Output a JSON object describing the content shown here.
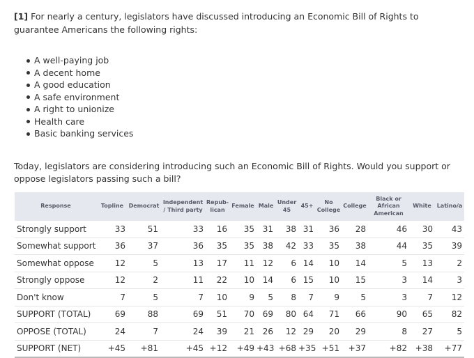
{
  "question1": {
    "number": "[1]",
    "text": "For nearly a century, legislators have discussed introducing an Economic Bill of Rights to guarantee Americans the following rights:"
  },
  "rights": [
    "A well-paying job",
    "A decent home",
    "A good education",
    "A safe environment",
    "A right to unionize",
    "Health care",
    "Basic banking services"
  ],
  "question2": {
    "text": "Today, legislators are considering introducing such an Economic Bill of Rights. Would you support or oppose legislators passing such a bill?"
  },
  "table": {
    "headers": [
      "Response",
      "Topline",
      "Democrat",
      "Independent / Third party",
      "Repub-lican",
      "Female",
      "Male",
      "Under 45",
      "45+",
      "No College",
      "College",
      "Black or African American",
      "White",
      "Latino/a"
    ],
    "rows": [
      [
        "Strongly support",
        "33",
        "51",
        "33",
        "16",
        "35",
        "31",
        "38",
        "31",
        "36",
        "28",
        "46",
        "30",
        "43"
      ],
      [
        "Somewhat support",
        "36",
        "37",
        "36",
        "35",
        "35",
        "38",
        "42",
        "33",
        "35",
        "38",
        "44",
        "35",
        "39"
      ],
      [
        "Somewhat oppose",
        "12",
        "5",
        "13",
        "17",
        "11",
        "12",
        "6",
        "14",
        "10",
        "14",
        "5",
        "13",
        "2"
      ],
      [
        "Strongly oppose",
        "12",
        "2",
        "11",
        "22",
        "10",
        "14",
        "6",
        "15",
        "10",
        "15",
        "3",
        "14",
        "3"
      ],
      [
        "Don't know",
        "7",
        "5",
        "7",
        "10",
        "9",
        "5",
        "8",
        "7",
        "9",
        "5",
        "3",
        "7",
        "12"
      ],
      [
        "SUPPORT (TOTAL)",
        "69",
        "88",
        "69",
        "51",
        "70",
        "69",
        "80",
        "64",
        "71",
        "66",
        "90",
        "65",
        "82"
      ],
      [
        "OPPOSE (TOTAL)",
        "24",
        "7",
        "24",
        "39",
        "21",
        "26",
        "12",
        "29",
        "20",
        "29",
        "8",
        "27",
        "5"
      ],
      [
        "SUPPORT (NET)",
        "+45",
        "+81",
        "+45",
        "+12",
        "+49",
        "+43",
        "+68",
        "+35",
        "+51",
        "+37",
        "+82",
        "+38",
        "+77"
      ]
    ]
  }
}
